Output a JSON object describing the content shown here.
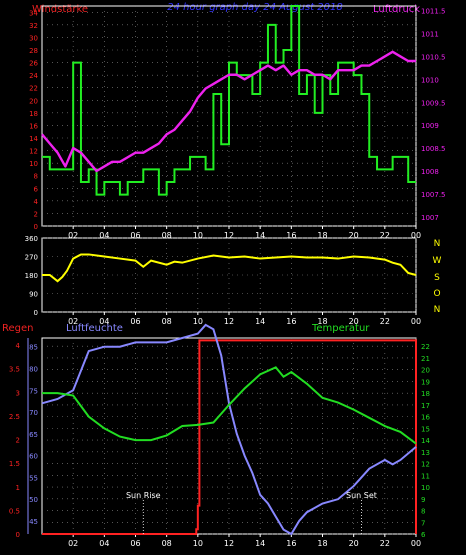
{
  "header": {
    "left_label": "Windstärke",
    "title": "24 hour graph day 24 August 2018",
    "right_label": "Luftdruck"
  },
  "colors": {
    "background": "#000000",
    "frame": "#ffffff",
    "wind": "#22ee22",
    "pressure": "#ee22ee",
    "direction": "#ffff00",
    "rain": "#ff2222",
    "humidity": "#8888ff",
    "temperature": "#22dd22",
    "title": "#3333ff",
    "dotted": "#888888"
  },
  "chart_data": [
    {
      "type": "line",
      "series": [
        {
          "name": "Windstärke",
          "axis": "left",
          "step": true,
          "x": [
            0,
            0.5,
            1,
            2,
            2.5,
            3,
            3.5,
            4,
            5,
            5.5,
            6,
            6.5,
            7,
            7.5,
            8,
            8.5,
            9,
            9.5,
            10,
            10.5,
            11,
            11.5,
            12,
            12.5,
            13,
            13.5,
            14,
            14.5,
            15,
            15.5,
            16,
            16.5,
            17,
            17.5,
            18,
            18.5,
            19,
            19.5,
            20,
            20.5,
            21,
            21.5,
            22,
            22.5,
            23,
            23.5,
            24
          ],
          "values": [
            11,
            9,
            9,
            26,
            7,
            9,
            5,
            7,
            5,
            7,
            7,
            9,
            9,
            5,
            7,
            9,
            9,
            11,
            11,
            9,
            21,
            13,
            26,
            24,
            24,
            21,
            26,
            32,
            26,
            28,
            35,
            21,
            24,
            18,
            24,
            21,
            26,
            26,
            24,
            21,
            11,
            9,
            9,
            11,
            11,
            7,
            7
          ]
        },
        {
          "name": "Luftdruck",
          "axis": "right",
          "x": [
            0,
            0.5,
            1,
            1.5,
            2,
            2.5,
            3,
            3.5,
            4,
            4.5,
            5,
            5.5,
            6,
            6.5,
            7,
            7.5,
            8,
            8.5,
            9,
            9.5,
            10,
            10.5,
            11,
            11.5,
            12,
            12.5,
            13,
            13.5,
            14,
            14.5,
            15,
            15.5,
            16,
            16.5,
            17,
            17.5,
            18,
            18.5,
            19,
            19.5,
            20,
            20.5,
            21,
            21.5,
            22,
            22.5,
            23,
            23.5,
            24
          ],
          "values": [
            1008.8,
            1008.6,
            1008.4,
            1008.1,
            1008.5,
            1008.4,
            1008.2,
            1008.0,
            1008.1,
            1008.2,
            1008.2,
            1008.3,
            1008.4,
            1008.4,
            1008.5,
            1008.6,
            1008.8,
            1008.9,
            1009.1,
            1009.3,
            1009.6,
            1009.8,
            1009.9,
            1010.0,
            1010.1,
            1010.1,
            1010.0,
            1010.1,
            1010.2,
            1010.3,
            1010.2,
            1010.3,
            1010.1,
            1010.2,
            1010.2,
            1010.1,
            1010.1,
            1010.0,
            1010.2,
            1010.2,
            1010.2,
            1010.3,
            1010.3,
            1010.4,
            1010.5,
            1010.6,
            1010.5,
            1010.4,
            1010.4
          ]
        }
      ],
      "y_left": {
        "min": 0,
        "max": 35,
        "ticks": [
          0,
          2,
          4,
          6,
          8,
          10,
          12,
          14,
          16,
          18,
          20,
          22,
          24,
          26,
          28,
          30,
          32,
          34
        ]
      },
      "y_right": {
        "min": 1006.8,
        "max": 1011.6,
        "ticks": [
          1007,
          1007.5,
          1008,
          1008.5,
          1009,
          1009.5,
          1010,
          1010.5,
          1011,
          1011.5
        ]
      },
      "x_ticks": [
        "02",
        "04",
        "06",
        "08",
        "10",
        "12",
        "14",
        "16",
        "18",
        "20",
        "22",
        "00"
      ],
      "x_tick_positions": [
        2,
        4,
        6,
        8,
        10,
        12,
        14,
        16,
        18,
        20,
        22,
        24
      ],
      "xlim": [
        0,
        24
      ]
    },
    {
      "type": "line",
      "series": [
        {
          "name": "Windrichtung",
          "x": [
            0,
            0.5,
            1,
            1.3,
            1.6,
            2,
            2.5,
            3,
            4,
            5,
            6,
            6.5,
            7,
            8,
            8.5,
            9,
            10,
            11,
            12,
            13,
            14,
            15,
            16,
            17,
            18,
            19,
            20,
            21,
            22,
            22.5,
            23,
            23.5,
            24
          ],
          "values": [
            180,
            180,
            150,
            170,
            200,
            260,
            280,
            280,
            270,
            260,
            250,
            220,
            250,
            230,
            245,
            240,
            260,
            275,
            265,
            270,
            260,
            265,
            270,
            265,
            265,
            260,
            270,
            265,
            255,
            240,
            230,
            190,
            180
          ]
        }
      ],
      "y_left": {
        "min": 0,
        "max": 360,
        "ticks": [
          0,
          90,
          180,
          270,
          360
        ]
      },
      "compass": [
        "N",
        "W",
        "S",
        "O",
        "N"
      ],
      "xlim": [
        0,
        24
      ]
    },
    {
      "type": "line",
      "series": [
        {
          "name": "Regen",
          "axis": "left-outer",
          "step": true,
          "x": [
            0,
            9.9,
            10,
            10.1,
            24,
            24
          ],
          "values": [
            0,
            0.1,
            0.6,
            4.1,
            4.1,
            0
          ]
        },
        {
          "name": "Luftfeuchte",
          "axis": "left-inner",
          "x": [
            0,
            1,
            2,
            3,
            4,
            5,
            6,
            7,
            8,
            9,
            10,
            10.5,
            11,
            11.5,
            12,
            12.5,
            13,
            13.5,
            14,
            14.5,
            15,
            15.5,
            16,
            16.5,
            17,
            18,
            19,
            20,
            21,
            22,
            22.5,
            23,
            24
          ],
          "values": [
            72,
            73,
            75,
            84,
            85,
            85,
            86,
            86,
            86,
            87,
            88,
            90,
            89,
            83,
            72,
            65,
            60,
            56,
            51,
            49,
            46,
            43,
            42,
            45,
            47,
            49,
            50,
            53,
            57,
            59,
            58,
            59,
            62
          ]
        },
        {
          "name": "Temperatur",
          "axis": "right",
          "x": [
            0,
            1,
            2,
            3,
            4,
            5,
            6,
            7,
            8,
            9,
            10,
            11,
            12,
            13,
            14,
            15,
            15.5,
            16,
            17,
            18,
            19,
            20,
            21,
            22,
            23,
            24
          ],
          "values": [
            18.0,
            18.0,
            17.8,
            16.0,
            15.0,
            14.3,
            14.0,
            14.0,
            14.4,
            15.2,
            15.3,
            15.5,
            17.0,
            18.4,
            19.6,
            20.2,
            19.4,
            19.8,
            18.8,
            17.6,
            17.2,
            16.6,
            15.9,
            15.2,
            14.7,
            13.7
          ]
        }
      ],
      "y_left_outer": {
        "label": "Regen",
        "min": 0,
        "max": 4.15,
        "ticks": [
          0,
          0.5,
          1,
          1.5,
          2,
          2.5,
          3,
          3.5,
          4
        ]
      },
      "y_left_inner": {
        "label": "Luftfeuchte",
        "min": 42,
        "max": 87,
        "ticks": [
          45,
          50,
          55,
          60,
          65,
          70,
          75,
          80,
          85
        ]
      },
      "y_right": {
        "label": "Temperatur",
        "min": 6,
        "max": 22.7,
        "ticks": [
          6,
          7,
          8,
          9,
          10,
          11,
          12,
          13,
          14,
          15,
          16,
          17,
          18,
          19,
          20,
          21,
          22
        ]
      },
      "annotations": [
        {
          "text": "Sun Rise",
          "x": 6.5
        },
        {
          "text": "Sun Set",
          "x": 20.5
        }
      ],
      "xlim": [
        0,
        24
      ]
    }
  ]
}
